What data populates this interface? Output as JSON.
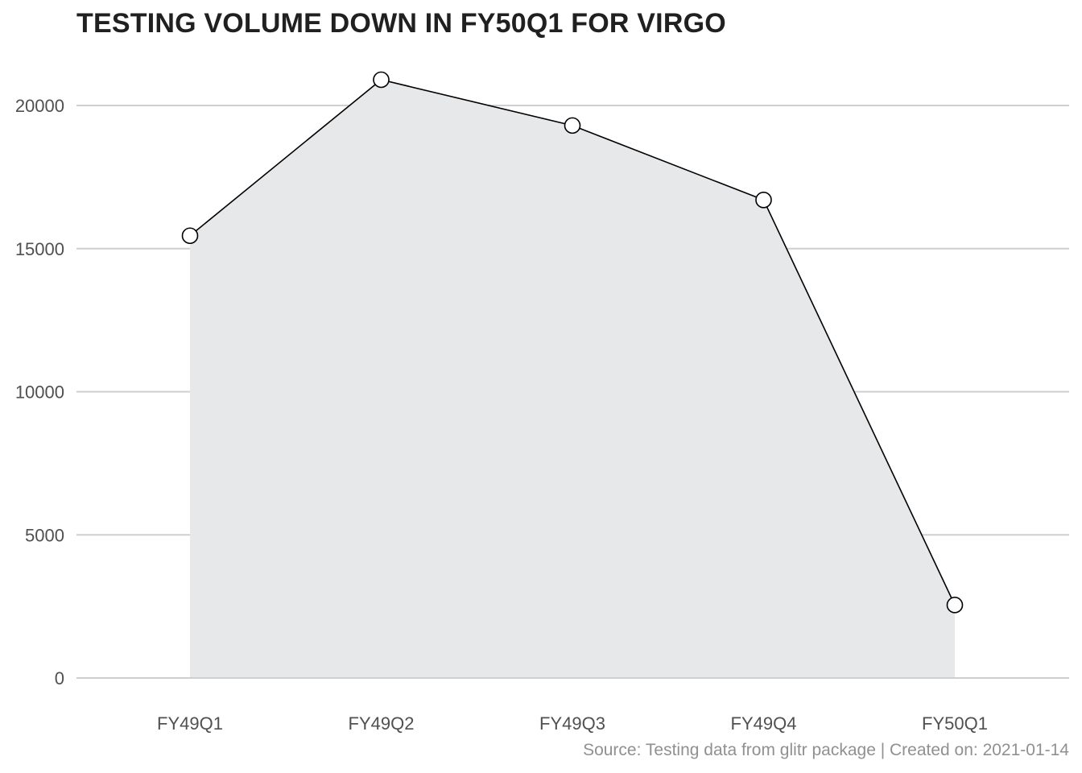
{
  "chart_data": {
    "type": "area",
    "title": "TESTING VOLUME DOWN IN FY50Q1 FOR VIRGO",
    "categories": [
      "FY49Q1",
      "FY49Q2",
      "FY49Q3",
      "FY49Q4",
      "FY50Q1"
    ],
    "values": [
      15450,
      20900,
      19300,
      16700,
      2550
    ],
    "xlabel": "",
    "ylabel": "",
    "ylim": [
      0,
      21000
    ],
    "yticks": [
      0,
      5000,
      10000,
      15000,
      20000
    ],
    "ytick_labels": [
      "0",
      "5000",
      "10000",
      "15000",
      "20000"
    ],
    "grid": "horizontal",
    "legend": "none",
    "colors": {
      "area_fill": "#e7e8ea",
      "line": "#000000",
      "marker_fill": "#ffffff",
      "marker_stroke": "#000000",
      "grid": "#cfcfd1"
    },
    "caption": "Source: Testing data from glitr package | Created on: 2021-01-14"
  }
}
